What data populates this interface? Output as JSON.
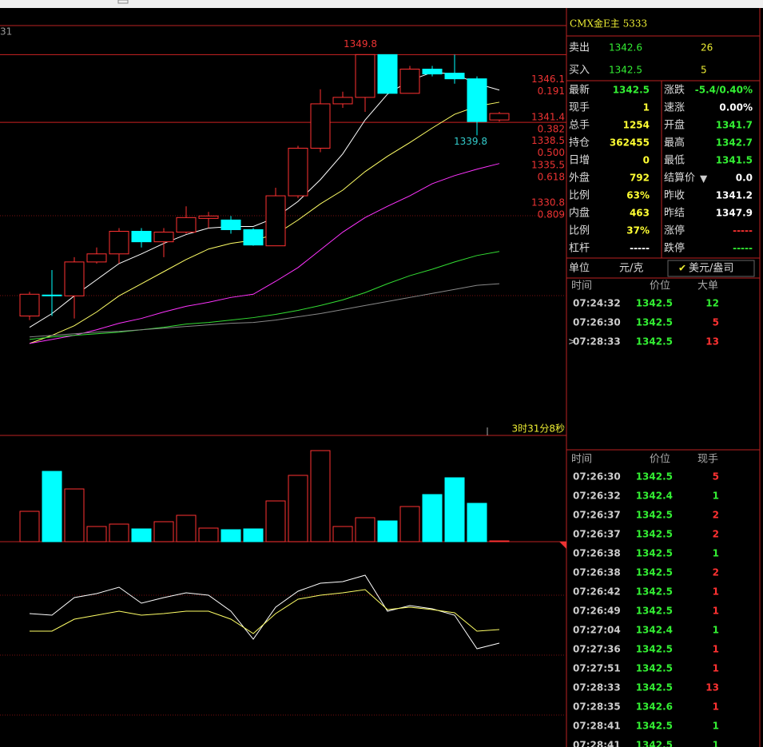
{
  "chart_data": {
    "type": "candlestick",
    "corner_label": "31",
    "countdown": "3时31分8秒",
    "ylim": [
      1302.6,
      1353.4
    ],
    "open": [
      1317.4,
      1320.0,
      1319.9,
      1324.1,
      1325.1,
      1327.9,
      1326.6,
      1327.8,
      1329.5,
      1329.3,
      1328.1,
      1326.1,
      1332.3,
      1338.2,
      1343.7,
      1344.5,
      1349.8,
      1345.0,
      1348.0,
      1347.5,
      1346.8,
      1341.7
    ],
    "high": [
      1320.4,
      1323.1,
      1324.7,
      1325.9,
      1328.3,
      1328.3,
      1328.3,
      1331.0,
      1330.3,
      1329.8,
      1328.3,
      1333.3,
      1338.5,
      1345.5,
      1345.2,
      1349.8,
      1349.8,
      1348.4,
      1348.4,
      1349.8,
      1347.1,
      1342.7
    ],
    "low": [
      1316.9,
      1317.4,
      1317.1,
      1323.9,
      1323.9,
      1325.9,
      1324.7,
      1327.6,
      1328.3,
      1327.6,
      1326.1,
      1326.1,
      1332.0,
      1337.7,
      1343.2,
      1342.7,
      1345.0,
      1345.0,
      1347.1,
      1346.2,
      1339.8,
      1341.5
    ],
    "close": [
      1320.1,
      1320.0,
      1324.1,
      1325.1,
      1327.9,
      1326.6,
      1327.8,
      1329.6,
      1329.8,
      1328.1,
      1326.2,
      1332.3,
      1338.2,
      1343.7,
      1344.5,
      1349.8,
      1345.0,
      1348.0,
      1347.4,
      1346.8,
      1341.5,
      1342.5
    ],
    "rise_color": "#ff3232",
    "fall_color": "#00ffff",
    "high_label": 1349.8,
    "low_label": 1339.8,
    "levels": [
      1349.8,
      1341.4
    ],
    "fib": [
      {
        "price": 1346.1,
        "ratio": 0.191
      },
      {
        "price": 1341.4,
        "ratio": 0.382
      },
      {
        "price": 1338.5,
        "ratio": {
          "value": 0.5,
          "label": "0.500"
        }
      },
      {
        "price": 1335.5,
        "ratio": 0.618
      },
      {
        "price": 1330.8,
        "ratio": 0.809
      }
    ],
    "ma": [
      {
        "color": "#ffffff",
        "values": [
          1316.0,
          1317.7,
          1319.9,
          1321.9,
          1323.9,
          1325.1,
          1326.4,
          1327.5,
          1328.3,
          1328.5,
          1328.5,
          1329.6,
          1331.6,
          1334.3,
          1337.5,
          1341.7,
          1344.9,
          1346.6,
          1347.6,
          1347.4,
          1346.2,
          1345.4
        ]
      },
      {
        "color": "#ffff66",
        "values": [
          1314.0,
          1315.0,
          1316.2,
          1317.9,
          1319.9,
          1321.4,
          1322.9,
          1324.4,
          1325.7,
          1326.4,
          1326.8,
          1327.5,
          1329.3,
          1331.3,
          1333.0,
          1335.3,
          1337.2,
          1338.9,
          1340.7,
          1342.4,
          1343.4,
          1343.9
        ]
      },
      {
        "color": "#ff33ff",
        "values": [
          1314.0,
          1314.5,
          1315.0,
          1315.7,
          1316.5,
          1317.1,
          1317.9,
          1318.6,
          1319.1,
          1319.7,
          1320.1,
          1321.7,
          1323.4,
          1325.6,
          1327.8,
          1329.6,
          1331.0,
          1332.3,
          1333.8,
          1334.8,
          1335.6,
          1336.3
        ]
      },
      {
        "color": "#33dd33",
        "values": [
          1314.5,
          1314.8,
          1315.0,
          1315.2,
          1315.4,
          1315.7,
          1316.0,
          1316.4,
          1316.6,
          1316.9,
          1317.2,
          1317.6,
          1318.1,
          1318.7,
          1319.4,
          1320.3,
          1321.4,
          1322.4,
          1323.2,
          1324.1,
          1324.9,
          1325.4
        ]
      },
      {
        "color": "#888888",
        "values": [
          1314.8,
          1315.0,
          1315.2,
          1315.4,
          1315.5,
          1315.7,
          1315.9,
          1316.1,
          1316.3,
          1316.5,
          1316.6,
          1316.9,
          1317.3,
          1317.7,
          1318.2,
          1318.7,
          1319.2,
          1319.7,
          1320.2,
          1320.7,
          1321.2,
          1321.4
        ]
      }
    ],
    "volume": {
      "ylim": [
        0,
        133
      ],
      "values": [
        38,
        88,
        66,
        19,
        22,
        16,
        25,
        33,
        17,
        15,
        16,
        51,
        83,
        114,
        19,
        30,
        26,
        44,
        59,
        80,
        48,
        1
      ]
    },
    "indicator": {
      "ylim": [
        0,
        245
      ],
      "series": [
        {
          "color": "#ffffff",
          "values": [
            167,
            165,
            187,
            192,
            200,
            180,
            187,
            193,
            190,
            170,
            135,
            175,
            195,
            205,
            207,
            215,
            170,
            177,
            173,
            165,
            123,
            130
          ]
        },
        {
          "color": "#ffff66",
          "values": [
            145,
            145,
            160,
            165,
            170,
            165,
            167,
            170,
            170,
            160,
            142,
            167,
            185,
            190,
            193,
            197,
            172,
            175,
            172,
            168,
            145,
            147
          ]
        }
      ]
    }
  },
  "quote": {
    "title": "CMX金E主  5333",
    "book": [
      {
        "label": "卖出",
        "price": "1342.6",
        "size": "26"
      },
      {
        "label": "买入",
        "price": "1342.5",
        "size": "5"
      }
    ],
    "grid": [
      [
        {
          "label": "最新",
          "value": "1342.5",
          "color": "#33ee33"
        },
        {
          "label": "涨跌",
          "value": "-5.4/0.40%",
          "color": "#33ee33"
        }
      ],
      [
        {
          "label": "现手",
          "value": "1",
          "color": "#ffff33"
        },
        {
          "label": "速涨",
          "value": "0.00%",
          "color": "#ffffff"
        }
      ],
      [
        {
          "label": "总手",
          "value": "1254",
          "color": "#ffff33"
        },
        {
          "label": "开盘",
          "value": "1341.7",
          "color": "#33ee33"
        }
      ],
      [
        {
          "label": "持仓",
          "value": "362455",
          "color": "#ffff33"
        },
        {
          "label": "最高",
          "value": "1342.7",
          "color": "#33ee33"
        }
      ],
      [
        {
          "label": "日增",
          "value": "0",
          "color": "#ffff33"
        },
        {
          "label": "最低",
          "value": "1341.5",
          "color": "#33ee33"
        }
      ],
      [
        {
          "label": "外盘",
          "value": "792",
          "color": "#ffff33"
        },
        {
          "label": "结算价",
          "value": "0.0",
          "color": "#ffffff"
        }
      ],
      [
        {
          "label": "比例",
          "value": "63%",
          "color": "#ffff33"
        },
        {
          "label": "昨收",
          "value": "1341.2",
          "color": "#ffffff"
        }
      ],
      [
        {
          "label": "内盘",
          "value": "463",
          "color": "#ffff33"
        },
        {
          "label": "昨结",
          "value": "1347.9",
          "color": "#ffffff"
        }
      ],
      [
        {
          "label": "比例",
          "value": "37%",
          "color": "#ffff33"
        },
        {
          "label": "涨停",
          "value": "-----",
          "color": "#ff3232"
        }
      ],
      [
        {
          "label": "杠杆",
          "value": "-----",
          "color": "#ffffff"
        },
        {
          "label": "跌停",
          "value": "-----",
          "color": "#33ee33"
        }
      ]
    ],
    "unit": {
      "label": "单位",
      "value": "元/克",
      "alt": "美元/盎司"
    }
  },
  "big_trades": {
    "headers": [
      "时间",
      "价位",
      "大单"
    ],
    "rows": [
      {
        "time": "07:24:32",
        "price": "1342.5",
        "size": "12",
        "color": "#33ee33"
      },
      {
        "time": "07:26:30",
        "price": "1342.5",
        "size": "5",
        "color": "#ff3232"
      },
      {
        "time": "07:28:33",
        "price": "1342.5",
        "size": "13",
        "color": "#ff3232"
      }
    ]
  },
  "ticks": {
    "headers": [
      "时间",
      "价位",
      "现手"
    ],
    "rows": [
      {
        "time": "07:26:30",
        "price": "1342.5",
        "size": "5",
        "color": "#ff3232"
      },
      {
        "time": "07:26:32",
        "price": "1342.4",
        "size": "1",
        "color": "#33ee33"
      },
      {
        "time": "07:26:37",
        "price": "1342.5",
        "size": "2",
        "color": "#ff3232"
      },
      {
        "time": "07:26:37",
        "price": "1342.5",
        "size": "2",
        "color": "#ff3232"
      },
      {
        "time": "07:26:38",
        "price": "1342.5",
        "size": "1",
        "color": "#33ee33"
      },
      {
        "time": "07:26:38",
        "price": "1342.5",
        "size": "2",
        "color": "#ff3232"
      },
      {
        "time": "07:26:42",
        "price": "1342.5",
        "size": "1",
        "color": "#ff3232"
      },
      {
        "time": "07:26:49",
        "price": "1342.5",
        "size": "1",
        "color": "#ff3232"
      },
      {
        "time": "07:27:04",
        "price": "1342.4",
        "size": "1",
        "color": "#33ee33"
      },
      {
        "time": "07:27:36",
        "price": "1342.5",
        "size": "1",
        "color": "#ff3232"
      },
      {
        "time": "07:27:51",
        "price": "1342.5",
        "size": "1",
        "color": "#ff3232"
      },
      {
        "time": "07:28:33",
        "price": "1342.5",
        "size": "13",
        "color": "#ff3232"
      },
      {
        "time": "07:28:35",
        "price": "1342.6",
        "size": "1",
        "color": "#ff3232"
      },
      {
        "time": "07:28:41",
        "price": "1342.5",
        "size": "1",
        "color": "#33ee33"
      },
      {
        "time": "07:28:41",
        "price": "1342.5",
        "size": "1",
        "color": "#33ee33"
      }
    ]
  }
}
